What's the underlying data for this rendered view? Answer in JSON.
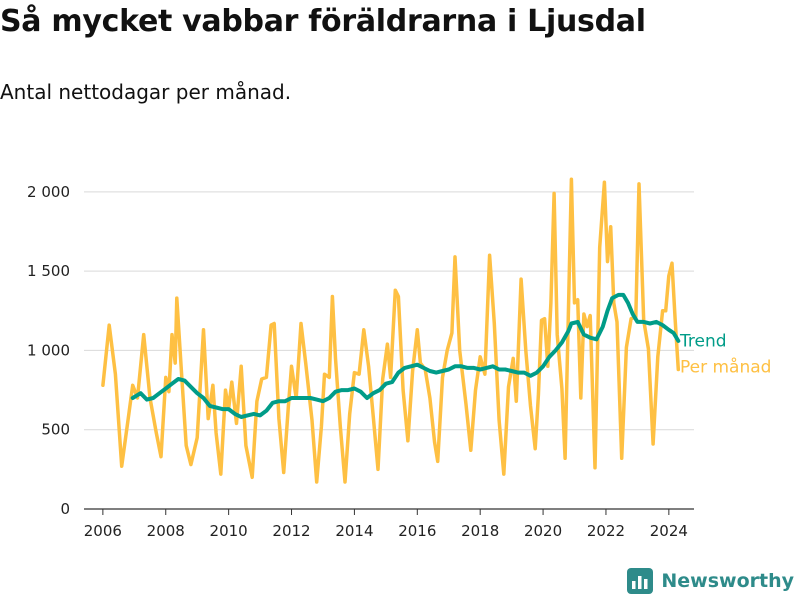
{
  "header": {
    "title": "Så mycket vabbar föräldrarna i Ljusdal",
    "subtitle": "Antal nettodagar per månad."
  },
  "brand": {
    "name": "Newsworthy",
    "icon": "bar-chart-logo-icon"
  },
  "colors": {
    "monthly": "#fec043",
    "trend": "#009c88",
    "grid": "#d9d9d9",
    "axis": "#333333",
    "brand": "#2e8b8a"
  },
  "chart_data": {
    "type": "line",
    "ylim": [
      0,
      2100
    ],
    "xlim": [
      2005.4,
      2024.8
    ],
    "grid": "horizontal",
    "legend_placement": "right, at line ends",
    "y_ticks": [
      {
        "value": 0,
        "label": "0"
      },
      {
        "value": 500,
        "label": "500"
      },
      {
        "value": 1000,
        "label": "1 000"
      },
      {
        "value": 1500,
        "label": "1 500"
      },
      {
        "value": 2000,
        "label": "2 000"
      }
    ],
    "x_ticks": [
      {
        "value": 2006,
        "label": "2006"
      },
      {
        "value": 2008,
        "label": "2008"
      },
      {
        "value": 2010,
        "label": "2010"
      },
      {
        "value": 2012,
        "label": "2012"
      },
      {
        "value": 2014,
        "label": "2014"
      },
      {
        "value": 2016,
        "label": "2016"
      },
      {
        "value": 2018,
        "label": "2018"
      },
      {
        "value": 2020,
        "label": "2020"
      },
      {
        "value": 2022,
        "label": "2022"
      },
      {
        "value": 2024,
        "label": "2024"
      }
    ],
    "series": [
      {
        "name": "Per månad",
        "color": "#fec043",
        "points": [
          [
            2006.0,
            780
          ],
          [
            2006.2,
            1160
          ],
          [
            2006.4,
            850
          ],
          [
            2006.6,
            270
          ],
          [
            2006.8,
            560
          ],
          [
            2006.95,
            780
          ],
          [
            2007.1,
            700
          ],
          [
            2007.3,
            1100
          ],
          [
            2007.5,
            700
          ],
          [
            2007.7,
            480
          ],
          [
            2007.85,
            330
          ],
          [
            2008.0,
            830
          ],
          [
            2008.1,
            740
          ],
          [
            2008.2,
            1100
          ],
          [
            2008.3,
            920
          ],
          [
            2008.35,
            1330
          ],
          [
            2008.5,
            860
          ],
          [
            2008.65,
            400
          ],
          [
            2008.8,
            280
          ],
          [
            2009.0,
            450
          ],
          [
            2009.2,
            1130
          ],
          [
            2009.35,
            570
          ],
          [
            2009.5,
            780
          ],
          [
            2009.6,
            480
          ],
          [
            2009.75,
            220
          ],
          [
            2009.9,
            750
          ],
          [
            2010.0,
            630
          ],
          [
            2010.1,
            800
          ],
          [
            2010.25,
            540
          ],
          [
            2010.4,
            900
          ],
          [
            2010.55,
            400
          ],
          [
            2010.75,
            200
          ],
          [
            2010.9,
            680
          ],
          [
            2011.05,
            820
          ],
          [
            2011.2,
            830
          ],
          [
            2011.35,
            1160
          ],
          [
            2011.45,
            1170
          ],
          [
            2011.6,
            570
          ],
          [
            2011.75,
            230
          ],
          [
            2011.9,
            650
          ],
          [
            2012.0,
            900
          ],
          [
            2012.15,
            700
          ],
          [
            2012.3,
            1170
          ],
          [
            2012.45,
            920
          ],
          [
            2012.65,
            560
          ],
          [
            2012.8,
            170
          ],
          [
            2012.95,
            520
          ],
          [
            2013.05,
            850
          ],
          [
            2013.2,
            830
          ],
          [
            2013.3,
            1340
          ],
          [
            2013.4,
            950
          ],
          [
            2013.55,
            520
          ],
          [
            2013.7,
            170
          ],
          [
            2013.85,
            600
          ],
          [
            2014.0,
            860
          ],
          [
            2014.15,
            850
          ],
          [
            2014.3,
            1130
          ],
          [
            2014.45,
            900
          ],
          [
            2014.6,
            580
          ],
          [
            2014.75,
            250
          ],
          [
            2014.9,
            820
          ],
          [
            2015.05,
            1040
          ],
          [
            2015.15,
            830
          ],
          [
            2015.3,
            1380
          ],
          [
            2015.4,
            1340
          ],
          [
            2015.55,
            750
          ],
          [
            2015.7,
            430
          ],
          [
            2015.85,
            870
          ],
          [
            2016.0,
            1130
          ],
          [
            2016.1,
            920
          ],
          [
            2016.25,
            880
          ],
          [
            2016.4,
            700
          ],
          [
            2016.55,
            420
          ],
          [
            2016.65,
            300
          ],
          [
            2016.8,
            830
          ],
          [
            2016.95,
            1000
          ],
          [
            2017.1,
            1110
          ],
          [
            2017.2,
            1590
          ],
          [
            2017.35,
            1000
          ],
          [
            2017.55,
            660
          ],
          [
            2017.7,
            370
          ],
          [
            2017.85,
            750
          ],
          [
            2018.0,
            960
          ],
          [
            2018.15,
            850
          ],
          [
            2018.3,
            1600
          ],
          [
            2018.45,
            1170
          ],
          [
            2018.6,
            560
          ],
          [
            2018.75,
            220
          ],
          [
            2018.9,
            770
          ],
          [
            2019.05,
            950
          ],
          [
            2019.15,
            680
          ],
          [
            2019.3,
            1450
          ],
          [
            2019.45,
            1000
          ],
          [
            2019.6,
            650
          ],
          [
            2019.75,
            380
          ],
          [
            2019.85,
            720
          ],
          [
            2019.95,
            1190
          ],
          [
            2020.05,
            1200
          ],
          [
            2020.15,
            900
          ],
          [
            2020.25,
            1300
          ],
          [
            2020.35,
            1990
          ],
          [
            2020.45,
            1100
          ],
          [
            2020.6,
            760
          ],
          [
            2020.7,
            320
          ],
          [
            2020.9,
            2080
          ],
          [
            2021.0,
            1300
          ],
          [
            2021.1,
            1320
          ],
          [
            2021.2,
            700
          ],
          [
            2021.3,
            1230
          ],
          [
            2021.4,
            1150
          ],
          [
            2021.5,
            1220
          ],
          [
            2021.65,
            260
          ],
          [
            2021.8,
            1650
          ],
          [
            2021.95,
            2060
          ],
          [
            2022.05,
            1560
          ],
          [
            2022.15,
            1780
          ],
          [
            2022.25,
            1300
          ],
          [
            2022.35,
            1180
          ],
          [
            2022.5,
            320
          ],
          [
            2022.65,
            1020
          ],
          [
            2022.8,
            1200
          ],
          [
            2022.95,
            1210
          ],
          [
            2023.05,
            2050
          ],
          [
            2023.2,
            1190
          ],
          [
            2023.35,
            1010
          ],
          [
            2023.5,
            410
          ],
          [
            2023.65,
            960
          ],
          [
            2023.8,
            1250
          ],
          [
            2023.9,
            1250
          ],
          [
            2024.0,
            1470
          ],
          [
            2024.1,
            1550
          ],
          [
            2024.2,
            1200
          ],
          [
            2024.3,
            880
          ]
        ]
      },
      {
        "name": "Trend",
        "color": "#009c88",
        "points": [
          [
            2006.95,
            700
          ],
          [
            2007.2,
            730
          ],
          [
            2007.4,
            690
          ],
          [
            2007.6,
            700
          ],
          [
            2007.8,
            730
          ],
          [
            2008.0,
            760
          ],
          [
            2008.2,
            790
          ],
          [
            2008.4,
            820
          ],
          [
            2008.6,
            810
          ],
          [
            2008.8,
            770
          ],
          [
            2009.0,
            730
          ],
          [
            2009.2,
            700
          ],
          [
            2009.4,
            650
          ],
          [
            2009.6,
            640
          ],
          [
            2009.8,
            630
          ],
          [
            2010.0,
            630
          ],
          [
            2010.2,
            600
          ],
          [
            2010.4,
            580
          ],
          [
            2010.6,
            590
          ],
          [
            2010.8,
            600
          ],
          [
            2011.0,
            590
          ],
          [
            2011.2,
            620
          ],
          [
            2011.4,
            670
          ],
          [
            2011.6,
            680
          ],
          [
            2011.8,
            680
          ],
          [
            2012.0,
            700
          ],
          [
            2012.2,
            700
          ],
          [
            2012.4,
            700
          ],
          [
            2012.6,
            700
          ],
          [
            2012.8,
            690
          ],
          [
            2013.0,
            680
          ],
          [
            2013.2,
            700
          ],
          [
            2013.4,
            740
          ],
          [
            2013.6,
            750
          ],
          [
            2013.8,
            750
          ],
          [
            2014.0,
            760
          ],
          [
            2014.2,
            740
          ],
          [
            2014.4,
            700
          ],
          [
            2014.6,
            730
          ],
          [
            2014.8,
            750
          ],
          [
            2015.0,
            790
          ],
          [
            2015.2,
            800
          ],
          [
            2015.4,
            860
          ],
          [
            2015.6,
            890
          ],
          [
            2015.8,
            900
          ],
          [
            2016.0,
            910
          ],
          [
            2016.2,
            890
          ],
          [
            2016.4,
            870
          ],
          [
            2016.6,
            860
          ],
          [
            2016.8,
            870
          ],
          [
            2017.0,
            880
          ],
          [
            2017.2,
            900
          ],
          [
            2017.4,
            900
          ],
          [
            2017.6,
            890
          ],
          [
            2017.8,
            890
          ],
          [
            2018.0,
            880
          ],
          [
            2018.2,
            890
          ],
          [
            2018.4,
            900
          ],
          [
            2018.6,
            880
          ],
          [
            2018.8,
            880
          ],
          [
            2019.0,
            870
          ],
          [
            2019.2,
            860
          ],
          [
            2019.4,
            860
          ],
          [
            2019.6,
            840
          ],
          [
            2019.8,
            860
          ],
          [
            2020.0,
            900
          ],
          [
            2020.2,
            960
          ],
          [
            2020.4,
            1000
          ],
          [
            2020.6,
            1050
          ],
          [
            2020.8,
            1120
          ],
          [
            2020.9,
            1170
          ],
          [
            2021.1,
            1180
          ],
          [
            2021.3,
            1100
          ],
          [
            2021.5,
            1080
          ],
          [
            2021.7,
            1070
          ],
          [
            2021.9,
            1150
          ],
          [
            2022.05,
            1250
          ],
          [
            2022.2,
            1330
          ],
          [
            2022.4,
            1350
          ],
          [
            2022.55,
            1350
          ],
          [
            2022.7,
            1300
          ],
          [
            2022.85,
            1230
          ],
          [
            2023.0,
            1180
          ],
          [
            2023.2,
            1180
          ],
          [
            2023.4,
            1170
          ],
          [
            2023.6,
            1180
          ],
          [
            2023.8,
            1160
          ],
          [
            2024.0,
            1130
          ],
          [
            2024.15,
            1110
          ],
          [
            2024.3,
            1060
          ]
        ]
      }
    ]
  }
}
